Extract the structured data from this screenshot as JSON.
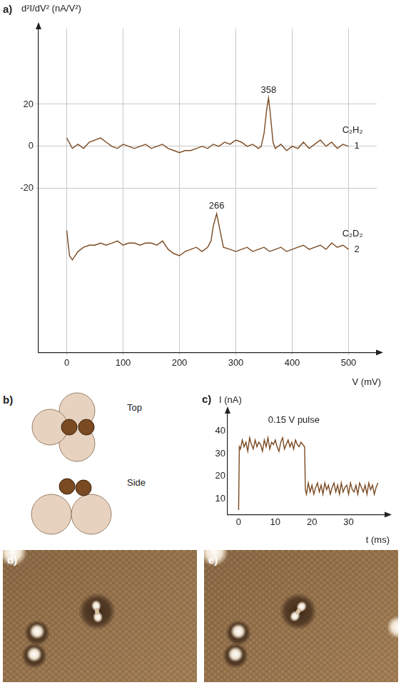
{
  "chart_data": [
    {
      "panel": "a)",
      "type": "line",
      "ylabel": "d²I/dV² (nA/V²)",
      "xlabel": "V (mV)",
      "xlim": [
        -50,
        550
      ],
      "xticks": [
        0,
        100,
        200,
        300,
        400,
        500
      ],
      "ylim": [
        -98,
        56
      ],
      "yticks": [
        -20,
        0,
        20
      ],
      "grid": true,
      "series": [
        {
          "name": "C₂H₂",
          "label": "1",
          "peak": 358,
          "color": "#7a4a22",
          "x": [
            0,
            10,
            20,
            30,
            40,
            50,
            60,
            70,
            80,
            90,
            100,
            110,
            120,
            130,
            140,
            150,
            160,
            170,
            180,
            190,
            200,
            210,
            220,
            230,
            240,
            250,
            260,
            270,
            280,
            290,
            300,
            310,
            320,
            330,
            340,
            345,
            350,
            355,
            358,
            361,
            366,
            370,
            380,
            390,
            400,
            410,
            420,
            430,
            440,
            450,
            460,
            470,
            480,
            490,
            500
          ],
          "values": [
            4,
            -1,
            1,
            -1,
            2,
            3,
            4,
            2,
            0,
            -1,
            1,
            0,
            -1,
            0,
            1,
            -1,
            0,
            1,
            -1,
            -2,
            -3,
            -2,
            -2,
            -1,
            0,
            -1,
            1,
            0,
            2,
            1,
            3,
            2,
            0,
            1,
            -1,
            0,
            6,
            18,
            23,
            16,
            2,
            -1,
            1,
            -2,
            0,
            -1,
            2,
            -1,
            1,
            3,
            0,
            2,
            -1,
            1,
            0
          ]
        },
        {
          "name": "C₂D₂",
          "label": "2",
          "peak": 266,
          "color": "#7a4a22",
          "x": [
            0,
            5,
            10,
            20,
            30,
            40,
            50,
            60,
            70,
            80,
            90,
            100,
            110,
            120,
            130,
            140,
            150,
            160,
            170,
            180,
            190,
            200,
            210,
            220,
            230,
            240,
            250,
            256,
            260,
            266,
            272,
            278,
            290,
            300,
            310,
            320,
            330,
            340,
            350,
            360,
            370,
            380,
            390,
            400,
            410,
            420,
            430,
            440,
            450,
            460,
            470,
            480,
            490,
            500
          ],
          "values": [
            -40,
            -52,
            -54,
            -50,
            -48,
            -47,
            -47,
            -46,
            -47,
            -46,
            -45,
            -47,
            -46,
            -46,
            -47,
            -46,
            -46,
            -47,
            -45,
            -49,
            -51,
            -52,
            -50,
            -49,
            -48,
            -50,
            -48,
            -45,
            -38,
            -32,
            -40,
            -48,
            -49,
            -50,
            -49,
            -48,
            -50,
            -49,
            -48,
            -50,
            -49,
            -48,
            -50,
            -49,
            -48,
            -47,
            -49,
            -48,
            -47,
            -49,
            -46,
            -48,
            -47,
            -49
          ]
        }
      ]
    },
    {
      "panel": "c)",
      "type": "line",
      "title": "0.15 V pulse",
      "ylabel": "I (nA)",
      "xlabel": "t (ms)",
      "xlim": [
        -3,
        40
      ],
      "xticks": [
        0,
        10,
        20,
        30
      ],
      "ylim": [
        3,
        48
      ],
      "yticks": [
        10,
        20,
        30,
        40
      ],
      "grid": false,
      "series": [
        {
          "color": "#7a4a22",
          "x": [
            0,
            0.2,
            0.5,
            1,
            1.5,
            2,
            2.5,
            3,
            3.5,
            4,
            4.5,
            5,
            5.5,
            6,
            6.5,
            7,
            7.5,
            8,
            8.5,
            9,
            9.5,
            10,
            10.5,
            11,
            11.5,
            12,
            12.5,
            13,
            13.5,
            14,
            14.5,
            15,
            15.5,
            16,
            16.5,
            17,
            17.5,
            18,
            18.2,
            18.5,
            19,
            19.5,
            20,
            20.5,
            21,
            21.5,
            22,
            22.5,
            23,
            23.5,
            24,
            24.5,
            25,
            25.5,
            26,
            26.5,
            27,
            27.5,
            28,
            28.5,
            29,
            29.5,
            30,
            30.5,
            31,
            31.5,
            32,
            32.5,
            33,
            33.5,
            34,
            34.5,
            35,
            35.5,
            36,
            36.5,
            37,
            37.5,
            38
          ],
          "values": [
            5,
            33,
            32,
            36,
            33,
            35,
            31,
            37,
            34,
            32,
            36,
            33,
            35,
            34,
            31,
            36,
            33,
            37,
            32,
            35,
            34,
            36,
            33,
            31,
            35,
            37,
            32,
            34,
            36,
            33,
            35,
            32,
            36,
            34,
            33,
            35,
            34,
            33,
            14,
            12,
            17,
            13,
            16,
            12,
            15,
            17,
            13,
            16,
            12,
            17,
            14,
            16,
            12,
            15,
            17,
            13,
            16,
            12,
            17,
            13,
            15,
            16,
            12,
            17,
            14,
            13,
            16,
            12,
            17,
            15,
            13,
            16,
            12,
            17,
            14,
            16,
            12,
            15,
            17
          ]
        }
      ]
    }
  ],
  "diagram": {
    "panel": "b)",
    "views": [
      "Top",
      "Side"
    ]
  },
  "images": [
    {
      "panel": "d)"
    },
    {
      "panel": "e)"
    }
  ]
}
